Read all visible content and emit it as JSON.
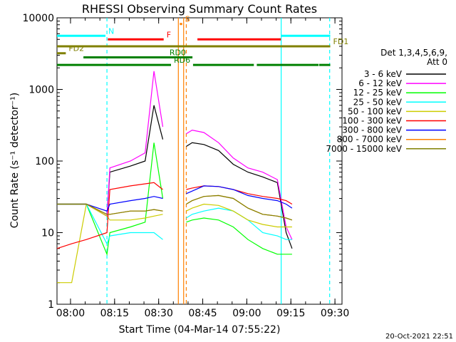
{
  "chart_data": {
    "type": "line",
    "title": "RHESSI Observing Summary Count Rates",
    "xlabel": "Start Time (04-Mar-14 07:55:22)",
    "ylabel": "Count Rate (s⁻¹ detector⁻¹)",
    "x_unit": "minutes since 07:55:22",
    "xlim": [
      0,
      97
    ],
    "ylim": [
      1,
      10000
    ],
    "yscale": "log",
    "xticks": [
      {
        "v": 4.6,
        "label": "08:00"
      },
      {
        "v": 19.6,
        "label": "08:15"
      },
      {
        "v": 34.6,
        "label": "08:30"
      },
      {
        "v": 49.6,
        "label": "08:45"
      },
      {
        "v": 64.6,
        "label": "09:00"
      },
      {
        "v": 79.6,
        "label": "09:15"
      },
      {
        "v": 94.6,
        "label": "09:30"
      }
    ],
    "yticks": [
      {
        "v": 1,
        "label": "1"
      },
      {
        "v": 10,
        "label": "10"
      },
      {
        "v": 100,
        "label": "100"
      },
      {
        "v": 1000,
        "label": "1000"
      },
      {
        "v": 10000,
        "label": "10000"
      }
    ],
    "legend": {
      "position": "right",
      "header": [
        "Det 1,3,4,5,6,9,",
        "Att 0"
      ]
    },
    "series": [
      {
        "name": "3 - 6 keV",
        "color": "#000000",
        "x": [
          0,
          5,
          10,
          17,
          18,
          25,
          30,
          33,
          36,
          38,
          40,
          44,
          46,
          50,
          55,
          60,
          65,
          70,
          75,
          78,
          80,
          83,
          87
        ],
        "y": [
          25,
          25,
          25,
          17,
          70,
          85,
          100,
          600,
          200,
          null,
          null,
          160,
          180,
          170,
          140,
          90,
          70,
          60,
          50,
          10,
          6,
          null,
          null
        ]
      },
      {
        "name": "6 - 12 keV",
        "color": "#ff00ff",
        "x": [
          0,
          5,
          10,
          17,
          18,
          25,
          30,
          33,
          36,
          38,
          40,
          44,
          46,
          50,
          55,
          60,
          65,
          70,
          75,
          78,
          80,
          83,
          87
        ],
        "y": [
          25,
          25,
          25,
          17,
          80,
          100,
          130,
          1800,
          300,
          null,
          null,
          240,
          270,
          250,
          180,
          110,
          80,
          70,
          55,
          12,
          8,
          null,
          null
        ]
      },
      {
        "name": "12 - 25 keV",
        "color": "#00ff00",
        "x": [
          0,
          5,
          10,
          17,
          18,
          25,
          30,
          33,
          36,
          38,
          40,
          44,
          46,
          50,
          55,
          60,
          65,
          70,
          75,
          78,
          80,
          83,
          87
        ],
        "y": [
          25,
          25,
          25,
          5,
          10,
          12,
          14,
          180,
          30,
          null,
          null,
          14,
          15,
          16,
          15,
          12,
          8,
          6,
          5,
          5,
          5,
          null,
          null
        ]
      },
      {
        "name": "25 - 50 keV",
        "color": "#00ffff",
        "x": [
          0,
          5,
          10,
          17,
          18,
          25,
          30,
          33,
          36,
          38,
          40,
          44,
          46,
          50,
          55,
          60,
          65,
          70,
          75,
          78,
          80,
          83,
          87
        ],
        "y": [
          25,
          25,
          25,
          7,
          9,
          10,
          10,
          10,
          8,
          null,
          null,
          16,
          18,
          20,
          22,
          20,
          15,
          10,
          9,
          8,
          8,
          null,
          null
        ]
      },
      {
        "name": "50 - 100 keV",
        "color": "#cccc00",
        "x": [
          0,
          5,
          10,
          17,
          18,
          25,
          30,
          33,
          36,
          38,
          40,
          44,
          46,
          50,
          55,
          60,
          65,
          70,
          75,
          78,
          80,
          83,
          87
        ],
        "y": [
          2,
          2,
          25,
          17,
          15,
          15,
          16,
          17,
          18,
          null,
          null,
          20,
          22,
          25,
          24,
          20,
          15,
          13,
          12,
          12,
          12,
          null,
          null
        ]
      },
      {
        "name": "100 - 300 keV",
        "color": "#ff0000",
        "x": [
          0,
          5,
          10,
          17,
          18,
          25,
          30,
          33,
          36,
          38,
          40,
          44,
          46,
          50,
          55,
          60,
          65,
          70,
          75,
          78,
          80,
          83,
          87
        ],
        "y": [
          6,
          7,
          8,
          10,
          40,
          45,
          48,
          50,
          40,
          null,
          null,
          40,
          42,
          45,
          44,
          40,
          35,
          32,
          30,
          28,
          25,
          null,
          null
        ]
      },
      {
        "name": "300 - 800 keV",
        "color": "#0000ff",
        "x": [
          0,
          5,
          10,
          17,
          18,
          25,
          30,
          33,
          36,
          38,
          40,
          44,
          46,
          50,
          55,
          60,
          65,
          70,
          75,
          78,
          80,
          83,
          87
        ],
        "y": [
          25,
          25,
          25,
          20,
          25,
          28,
          30,
          32,
          30,
          null,
          null,
          35,
          38,
          45,
          44,
          40,
          33,
          30,
          28,
          25,
          22,
          null,
          null
        ]
      },
      {
        "name": "800 - 7000 keV",
        "color": "#ff8000",
        "x": [
          0,
          5,
          10,
          17,
          18,
          25,
          30,
          33,
          36,
          38,
          40,
          44,
          46,
          50,
          55,
          60,
          65,
          70,
          75,
          78,
          80,
          83,
          87
        ],
        "y": [
          25,
          25,
          25,
          18,
          18,
          20,
          20,
          21,
          20,
          null,
          null,
          25,
          28,
          32,
          33,
          30,
          22,
          18,
          17,
          16,
          15,
          null,
          null
        ]
      },
      {
        "name": "7000 - 15000 keV",
        "color": "#808000",
        "x": [
          0,
          5,
          10,
          17,
          18,
          25,
          30,
          33,
          36,
          38,
          40,
          44,
          46,
          50,
          55,
          60,
          65,
          70,
          75,
          78,
          80,
          83,
          87
        ],
        "y": [
          25,
          25,
          25,
          18,
          18,
          20,
          20,
          21,
          20,
          null,
          null,
          25,
          28,
          32,
          33,
          30,
          22,
          18,
          17,
          16,
          15,
          null,
          null
        ]
      }
    ],
    "flags": [
      {
        "label": "N",
        "color": "#00ffff",
        "y": 5600,
        "segments": [
          [
            0,
            16.5
          ],
          [
            76.3,
            93
          ]
        ]
      },
      {
        "label": "S",
        "color": "#ff8000",
        "y": 8200,
        "segments": [
          [
            41.8,
            42.6
          ]
        ]
      },
      {
        "label": "F",
        "color": "#ff0000",
        "y": 5000,
        "segments": [
          [
            17.3,
            36.3
          ],
          [
            47.8,
            76.2
          ]
        ]
      },
      {
        "label": "FD1",
        "color": "#808000",
        "y": 4000,
        "segments": [
          [
            0,
            93
          ]
        ]
      },
      {
        "label": "FD2",
        "color": "#808000",
        "y": 3200,
        "segments": [
          [
            0,
            3
          ]
        ]
      },
      {
        "label": "RD0",
        "color": "#008000",
        "y": 2800,
        "segments": [
          [
            9,
            37.3
          ],
          [
            25,
            46.1
          ]
        ]
      },
      {
        "label": "RD6",
        "color": "#008000",
        "y": 2200,
        "segments": [
          [
            0,
            38.8
          ],
          [
            46.3,
            67
          ],
          [
            68,
            89
          ],
          [
            89.2,
            93
          ]
        ]
      }
    ],
    "markers": [
      {
        "color": "#00ffff",
        "style": "dashed",
        "x": 17.0
      },
      {
        "color": "#00ffff",
        "style": "dashed",
        "x": 92.8
      },
      {
        "color": "#00ffff",
        "style": "solid",
        "x": 76.3
      },
      {
        "color": "#ff8000",
        "style": "solid",
        "x": 41.3
      },
      {
        "color": "#ff8000",
        "style": "solid",
        "x": 43.1
      },
      {
        "color": "#ff8000",
        "style": "dashed",
        "x": 44.0
      }
    ],
    "footer_text": "20-Oct-2021 22:51"
  }
}
